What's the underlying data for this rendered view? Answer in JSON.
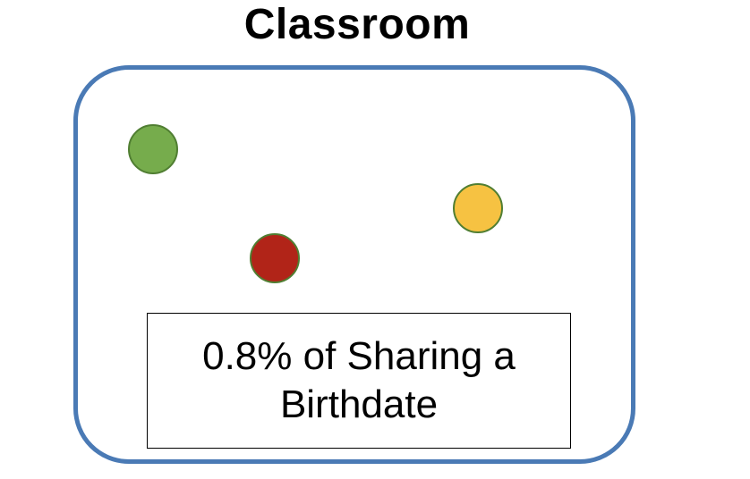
{
  "title": "Classroom",
  "students": [
    {
      "name": "green-student",
      "color": "#76ac4c"
    },
    {
      "name": "red-student",
      "color": "#b12418"
    },
    {
      "name": "yellow-student",
      "color": "#f6c242"
    }
  ],
  "colors": {
    "classroom_border": "#4a7ab5",
    "dot_border": "#507e32"
  },
  "probability_label": "0.8% of Sharing a Birthdate"
}
